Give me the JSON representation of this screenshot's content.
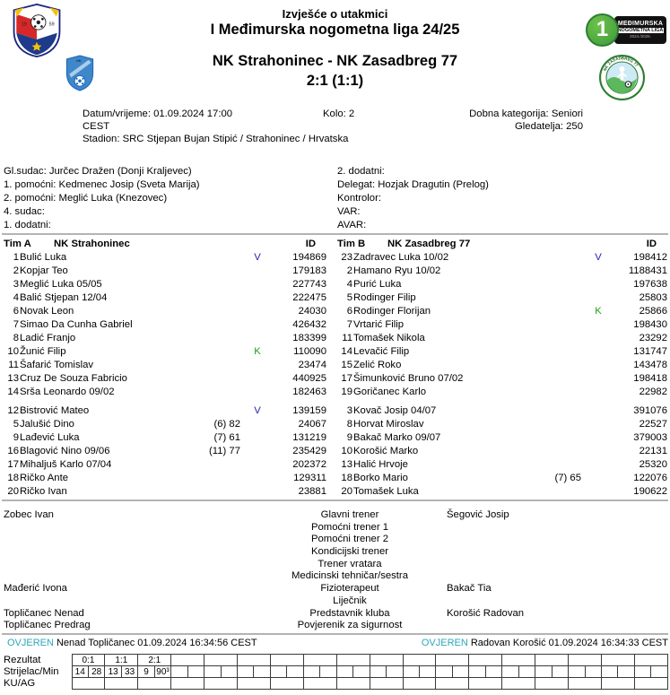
{
  "header": {
    "report_title": "Izvješće o utakmici",
    "league_title": "I Međimurska nogometna liga 24/25",
    "match_title": "NK Strahoninec - NK Zasadbreg 77",
    "score_line": "2:1 (1:1)"
  },
  "logos": {
    "crest_year_left": "19",
    "crest_year_right": "59",
    "home_abbr": "NK",
    "league_badge": {
      "number": "1",
      "line1": "MEĐIMURSKA",
      "line2": "NOGOMETNA LIGA",
      "line3": "2024./2025."
    },
    "away_ring_text": "NK ZASADBREG 77"
  },
  "info": {
    "datetime": "Datum/vrijeme: 01.09.2024 17:00",
    "timezone": "CEST",
    "round": "Kolo: 2",
    "category": "Dobna kategorija: Seniori",
    "attendance": "Gledatelja: 250",
    "stadium": "Stadion: SRC Stjepan Bujan Stipić / Strahoninec / Hrvatska"
  },
  "officials": {
    "left": [
      "Gl.sudac: Jurčec Dražen (Donji Kraljevec)",
      "1. pomoćni: Kedmenec Josip (Sveta Marija)",
      "2. pomoćni: Meglić Luka (Knezovec)",
      "4. sudac:",
      "1. dodatni:"
    ],
    "right": [
      "2. dodatni:",
      "Delegat: Hozjak Dragutin (Prelog)",
      "Kontrolor:",
      "VAR:",
      "AVAR:"
    ]
  },
  "badge_colors": {
    "V": "#2424b4",
    "K": "#1ba11b"
  },
  "team_a": {
    "label": "Tim A",
    "name": "NK Strahoninec",
    "id_header": "ID",
    "starters": [
      {
        "num": "1",
        "name": "Bulić Luka",
        "sub": "",
        "badge": "V",
        "id": "194869"
      },
      {
        "num": "2",
        "name": "Kopjar Teo",
        "sub": "",
        "badge": "",
        "id": "179183"
      },
      {
        "num": "3",
        "name": "Meglić Luka 05/05",
        "sub": "",
        "badge": "",
        "id": "227743"
      },
      {
        "num": "4",
        "name": "Balić Stjepan 12/04",
        "sub": "",
        "badge": "",
        "id": "222475"
      },
      {
        "num": "6",
        "name": "Novak Leon",
        "sub": "",
        "badge": "",
        "id": "24030"
      },
      {
        "num": "7",
        "name": "Simao Da Cunha Gabriel",
        "sub": "",
        "badge": "",
        "id": "426432"
      },
      {
        "num": "8",
        "name": "Ladić Franjo",
        "sub": "",
        "badge": "",
        "id": "183399"
      },
      {
        "num": "10",
        "name": "Žunić Filip",
        "sub": "",
        "badge": "K",
        "id": "110090"
      },
      {
        "num": "11",
        "name": "Šafarić Tomislav",
        "sub": "",
        "badge": "",
        "id": "23474"
      },
      {
        "num": "13",
        "name": "Cruz De Souza Fabricio",
        "sub": "",
        "badge": "",
        "id": "440925"
      },
      {
        "num": "14",
        "name": "Srša Leonardo 09/02",
        "sub": "",
        "badge": "",
        "id": "182463"
      }
    ],
    "substitutes": [
      {
        "num": "12",
        "name": "Bistrović Mateo",
        "sub": "",
        "badge": "V",
        "id": "139159"
      },
      {
        "num": "5",
        "name": "Jalušić Dino",
        "sub": "(6) 82",
        "badge": "",
        "id": "24067"
      },
      {
        "num": "9",
        "name": "Lađević Luka",
        "sub": "(7) 61",
        "badge": "",
        "id": "131219"
      },
      {
        "num": "16",
        "name": "Blagović Nino 09/06",
        "sub": "(11) 77",
        "badge": "",
        "id": "235429"
      },
      {
        "num": "17",
        "name": "Mihaljuš Karlo 07/04",
        "sub": "",
        "badge": "",
        "id": "202372"
      },
      {
        "num": "18",
        "name": "Ričko Ante",
        "sub": "",
        "badge": "",
        "id": "129311"
      },
      {
        "num": "20",
        "name": "Ričko Ivan",
        "sub": "",
        "badge": "",
        "id": "23881"
      }
    ]
  },
  "team_b": {
    "label": "Tim B",
    "name": "NK Zasadbreg 77",
    "id_header": "ID",
    "starters": [
      {
        "num": "23",
        "name": "Zadravec Luka 10/02",
        "sub": "",
        "badge": "V",
        "id": "198412"
      },
      {
        "num": "2",
        "name": "Hamano Ryu 10/02",
        "sub": "",
        "badge": "",
        "id": "1188431"
      },
      {
        "num": "4",
        "name": "Purić Luka",
        "sub": "",
        "badge": "",
        "id": "197638"
      },
      {
        "num": "5",
        "name": "Rodinger Filip",
        "sub": "",
        "badge": "",
        "id": "25803"
      },
      {
        "num": "6",
        "name": "Rodinger Florijan",
        "sub": "",
        "badge": "K",
        "id": "25866"
      },
      {
        "num": "7",
        "name": "Vrtarić Filip",
        "sub": "",
        "badge": "",
        "id": "198430"
      },
      {
        "num": "11",
        "name": "Tomašek Nikola",
        "sub": "",
        "badge": "",
        "id": "23292"
      },
      {
        "num": "14",
        "name": "Levačić Filip",
        "sub": "",
        "badge": "",
        "id": "131747"
      },
      {
        "num": "15",
        "name": "Zelić Roko",
        "sub": "",
        "badge": "",
        "id": "143478"
      },
      {
        "num": "17",
        "name": "Šimunković Bruno 07/02",
        "sub": "",
        "badge": "",
        "id": "198418"
      },
      {
        "num": "19",
        "name": "Goričanec Karlo",
        "sub": "",
        "badge": "",
        "id": "22982"
      }
    ],
    "substitutes": [
      {
        "num": "3",
        "name": "Kovač Josip 04/07",
        "sub": "",
        "badge": "",
        "id": "391076"
      },
      {
        "num": "8",
        "name": "Horvat Miroslav",
        "sub": "",
        "badge": "",
        "id": "22527"
      },
      {
        "num": "9",
        "name": "Bakač Marko 09/07",
        "sub": "",
        "badge": "",
        "id": "379003"
      },
      {
        "num": "10",
        "name": "Korošić Marko",
        "sub": "",
        "badge": "",
        "id": "22131"
      },
      {
        "num": "13",
        "name": "Halić Hrvoje",
        "sub": "",
        "badge": "",
        "id": "25320"
      },
      {
        "num": "18",
        "name": "Borko Mario",
        "sub": "(7) 65",
        "badge": "",
        "id": "122076"
      },
      {
        "num": "20",
        "name": "Tomašek Luka",
        "sub": "",
        "badge": "",
        "id": "190622"
      }
    ]
  },
  "staff": {
    "rows": [
      {
        "a": "Zobec Ivan",
        "role": "Glavni trener",
        "b": "Šegović Josip"
      },
      {
        "a": "",
        "role": "Pomoćni trener 1",
        "b": ""
      },
      {
        "a": "",
        "role": "Pomoćni trener 2",
        "b": ""
      },
      {
        "a": "",
        "role": "Kondicijski trener",
        "b": ""
      },
      {
        "a": "",
        "role": "Trener vratara",
        "b": ""
      },
      {
        "a": "",
        "role": "Medicinski tehničar/sestra",
        "b": ""
      },
      {
        "a": "Mađerić Ivona",
        "role": "Fizioterapeut",
        "b": "Bakač Tia"
      },
      {
        "a": "",
        "role": "Liječnik",
        "b": ""
      },
      {
        "a": "Topličanec Nenad",
        "role": "Predstavnik kluba",
        "b": "Korošić Radovan"
      },
      {
        "a": "Topličanec Predrag",
        "role": "Povjerenik za sigurnost",
        "b": ""
      }
    ]
  },
  "certification": {
    "label": "OVJEREN",
    "color": "#2ca8ba",
    "left": "Nenad Topličanec 01.09.2024 16:34:56 CEST",
    "right": "Radovan Korošić 01.09.2024 16:34:33 CEST"
  },
  "score_table": {
    "row_labels": [
      "Rezultat",
      "Strijelac/Min",
      "KU/AG"
    ],
    "columns": 18,
    "results": [
      "0:1",
      "1:1",
      "2:1"
    ],
    "scorer_min": [
      [
        "14",
        "28"
      ],
      [
        "13",
        "33"
      ],
      [
        "9",
        "90³"
      ]
    ]
  }
}
